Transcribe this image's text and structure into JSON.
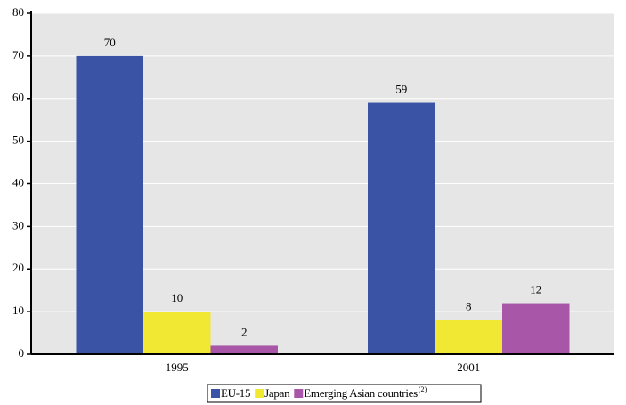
{
  "chart_data": {
    "type": "bar",
    "categories": [
      "1995",
      "2001"
    ],
    "series": [
      {
        "name": "EU-15",
        "color": "#3a53a4",
        "values": [
          70,
          59
        ]
      },
      {
        "name": "Japan",
        "color": "#f0e832",
        "values": [
          10,
          8
        ]
      },
      {
        "name": "Emerging Asian countries",
        "note": "(2)",
        "color": "#a857a8",
        "values": [
          2,
          12
        ]
      }
    ],
    "ylim": [
      0,
      80
    ],
    "yticks": [
      0,
      10,
      20,
      30,
      40,
      50,
      60,
      70,
      80
    ],
    "grid": true
  }
}
